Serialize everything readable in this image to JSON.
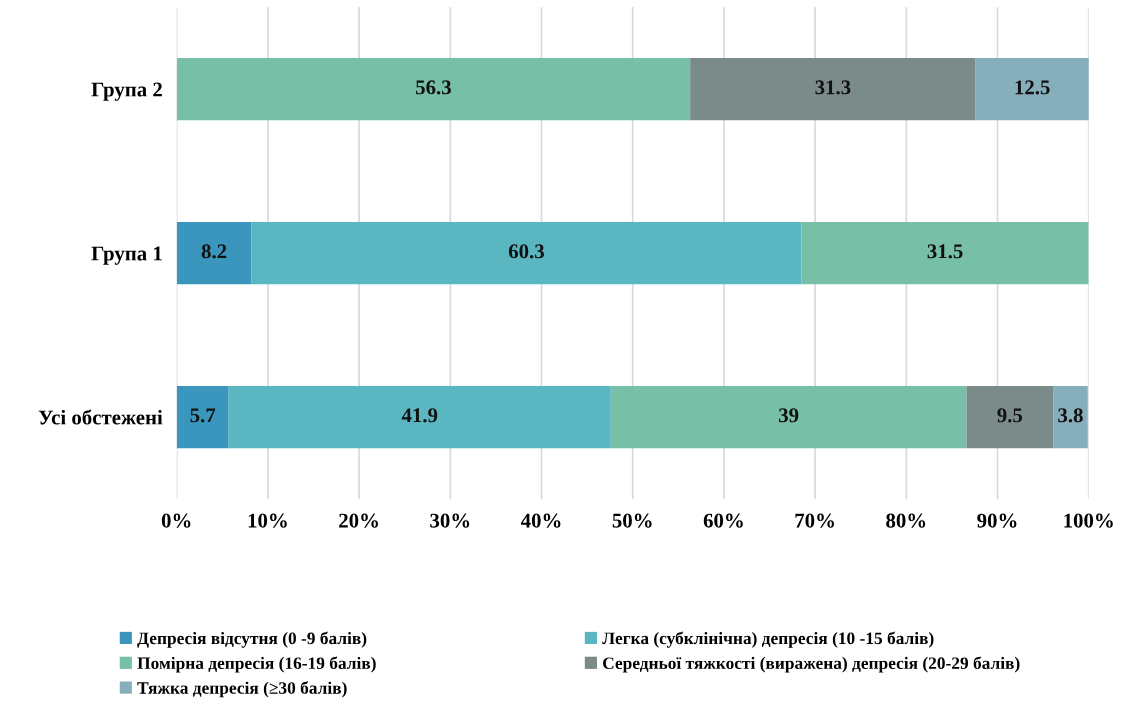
{
  "chart_data": {
    "type": "bar",
    "orientation": "horizontal",
    "stacked": true,
    "categories": [
      "Група 2",
      "Група 1",
      "Усі обстежені"
    ],
    "series": [
      {
        "name": "Депресія відсутня (0 -9 балів)",
        "color": "#3a96bd",
        "values": [
          null,
          8.2,
          5.7
        ],
        "value_labels": [
          null,
          "8.2",
          "5.7"
        ]
      },
      {
        "name": "Легка (субклінічна) депресія (10 -15 балів)",
        "color": "#5ab6c1",
        "values": [
          null,
          60.3,
          41.9
        ],
        "value_labels": [
          null,
          "60.3",
          "41.9"
        ]
      },
      {
        "name": "Помірна депресія (16-19 балів)",
        "color": "#78bfa7",
        "values": [
          56.3,
          31.5,
          39
        ],
        "value_labels": [
          "56.3",
          "31.5",
          "39"
        ]
      },
      {
        "name": "Середньої тяжкості (виражена) депресія (20-29 балів)",
        "color": "#7a8b8a",
        "values": [
          31.3,
          null,
          9.5
        ],
        "value_labels": [
          "31.3",
          null,
          "9.5"
        ]
      },
      {
        "name": "Тяжка депресія (≥30 балів)",
        "color": "#87aebb",
        "values": [
          12.5,
          null,
          3.8
        ],
        "value_labels": [
          "12.5",
          null,
          "3.8"
        ]
      }
    ],
    "xlim": [
      0,
      100
    ],
    "xticks": [
      {
        "value": 0,
        "label": "0%"
      },
      {
        "value": 10,
        "label": "10%"
      },
      {
        "value": 20,
        "label": "20%"
      },
      {
        "value": 30,
        "label": "30%"
      },
      {
        "value": 40,
        "label": "40%"
      },
      {
        "value": 50,
        "label": "50%"
      },
      {
        "value": 60,
        "label": "60%"
      },
      {
        "value": 70,
        "label": "70%"
      },
      {
        "value": 80,
        "label": "80%"
      },
      {
        "value": 90,
        "label": "90%"
      },
      {
        "value": 100,
        "label": "100%"
      }
    ],
    "grid": "x",
    "legend": "bottom"
  }
}
